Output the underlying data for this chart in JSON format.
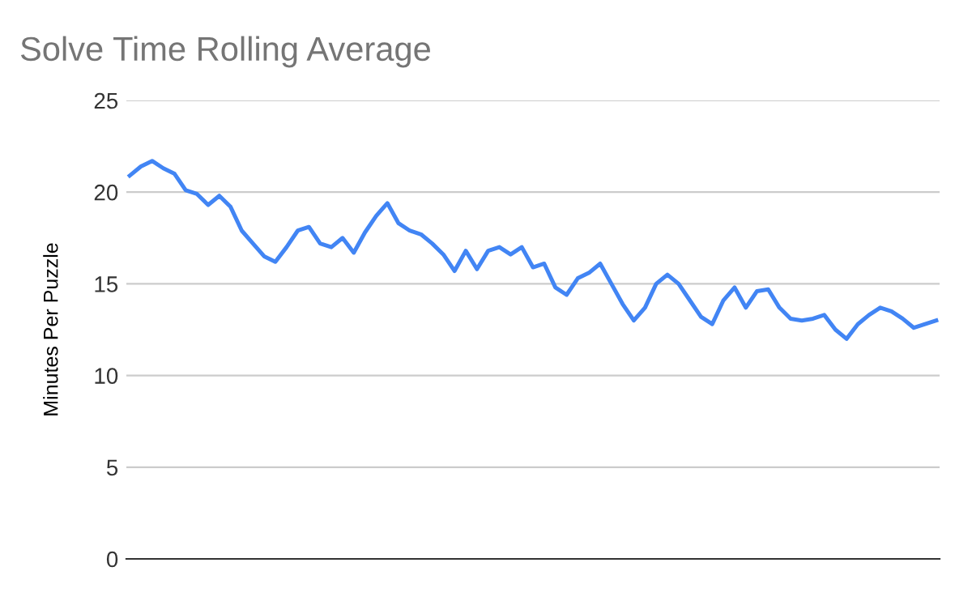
{
  "chart_data": {
    "type": "line",
    "title": "Solve Time Rolling Average",
    "ylabel": "Minutes Per Puzzle",
    "categories": [
      null,
      null,
      null,
      null,
      null,
      null,
      null,
      null,
      null,
      null,
      null,
      null,
      null,
      null,
      null,
      null,
      null,
      null,
      null,
      null,
      null,
      null,
      null,
      null,
      null,
      null,
      null,
      null,
      null,
      null,
      null,
      null,
      null,
      null,
      null,
      null,
      null,
      null,
      null,
      null,
      null,
      null,
      null,
      null,
      null,
      null,
      null,
      null,
      null,
      null,
      null,
      null,
      null,
      null,
      null,
      null,
      null,
      null,
      null,
      null,
      null,
      null,
      null,
      null,
      null,
      null,
      null,
      null,
      null,
      null,
      null,
      null,
      null
    ],
    "series": [
      {
        "color": "#4285f4",
        "values": [
          20.9,
          21.4,
          21.7,
          21.3,
          21.0,
          20.1,
          19.9,
          19.3,
          19.8,
          19.2,
          17.9,
          17.2,
          16.5,
          16.2,
          17.0,
          17.9,
          18.1,
          17.2,
          17.0,
          17.5,
          16.7,
          17.8,
          18.7,
          19.4,
          18.3,
          17.9,
          17.7,
          17.2,
          16.6,
          15.7,
          16.8,
          15.8,
          16.8,
          17.0,
          16.6,
          17.0,
          15.9,
          16.1,
          14.8,
          14.4,
          15.3,
          15.6,
          16.1,
          15.0,
          13.9,
          13.0,
          13.7,
          15.0,
          15.5,
          15.0,
          14.1,
          13.2,
          12.8,
          14.1,
          14.8,
          13.7,
          14.6,
          14.7,
          13.7,
          13.1,
          13.0,
          13.1,
          13.3,
          12.5,
          12.0,
          12.8,
          13.3,
          13.7,
          13.5,
          13.1,
          12.6,
          12.8,
          13.0
        ]
      }
    ],
    "ylim": [
      0,
      25
    ],
    "yticks": [
      0,
      5,
      10,
      15,
      20,
      25
    ],
    "grid": "y",
    "tick_labels": "y",
    "marker": "none",
    "line_style": "solid"
  }
}
